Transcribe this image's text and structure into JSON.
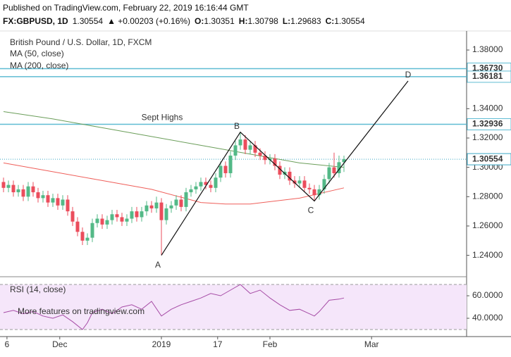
{
  "header": {
    "published": "Published on TradingView.com, February 22, 2019 16:16:44 GMT",
    "symbol": "FX:GBPUSD, 1D",
    "price": "1.30554",
    "change": "▲ +0.00203 (+0.16%)",
    "ohlc": [
      {
        "label": "O:",
        "value": "1.30351"
      },
      {
        "label": "H:",
        "value": "1.30798"
      },
      {
        "label": "L:",
        "value": "1.29683"
      },
      {
        "label": "C:",
        "value": "1.30554"
      }
    ]
  },
  "chart_data": {
    "type": "candlestick",
    "title": "British Pound / U.S. Dollar, 1D, FXCM",
    "up_color": "#53b987",
    "down_color": "#eb4d5c",
    "open": [
      1.29,
      1.286,
      1.288,
      1.283,
      1.285,
      1.28,
      1.287,
      1.283,
      1.279,
      1.281,
      1.276,
      1.279,
      1.274,
      1.278,
      1.27,
      1.263,
      1.256,
      1.25,
      1.252,
      1.262,
      1.265,
      1.261,
      1.264,
      1.268,
      1.266,
      1.263,
      1.265,
      1.27,
      1.266,
      1.27,
      1.274,
      1.272,
      1.276,
      1.264,
      1.272,
      1.274,
      1.278,
      1.273,
      1.283,
      1.285,
      1.287,
      1.29,
      1.288,
      1.286,
      1.293,
      1.301,
      1.296,
      1.308,
      1.315,
      1.319,
      1.312,
      1.315,
      1.31,
      1.308,
      1.305,
      1.306,
      1.301,
      1.295,
      1.297,
      1.291,
      1.289,
      1.291,
      1.286,
      1.285,
      1.281,
      1.285,
      1.292,
      1.3,
      1.296,
      1.30351
    ],
    "high": [
      1.293,
      1.291,
      1.291,
      1.288,
      1.288,
      1.29,
      1.29,
      1.286,
      1.284,
      1.284,
      1.282,
      1.282,
      1.281,
      1.281,
      1.273,
      1.266,
      1.259,
      1.255,
      1.265,
      1.268,
      1.268,
      1.267,
      1.271,
      1.271,
      1.269,
      1.268,
      1.273,
      1.273,
      1.273,
      1.277,
      1.277,
      1.28,
      1.279,
      1.275,
      1.277,
      1.281,
      1.281,
      1.286,
      1.288,
      1.29,
      1.293,
      1.293,
      1.291,
      1.296,
      1.304,
      1.304,
      1.311,
      1.318,
      1.324,
      1.322,
      1.318,
      1.318,
      1.313,
      1.311,
      1.309,
      1.309,
      1.304,
      1.3,
      1.3,
      1.294,
      1.294,
      1.294,
      1.289,
      1.288,
      1.288,
      1.295,
      1.303,
      1.31,
      1.308,
      1.30798
    ],
    "low": [
      1.283,
      1.283,
      1.28,
      1.28,
      1.277,
      1.277,
      1.28,
      1.276,
      1.276,
      1.273,
      1.273,
      1.271,
      1.271,
      1.267,
      1.26,
      1.253,
      1.247,
      1.247,
      1.249,
      1.259,
      1.258,
      1.258,
      1.261,
      1.263,
      1.26,
      1.26,
      1.262,
      1.263,
      1.263,
      1.267,
      1.269,
      1.269,
      1.24,
      1.261,
      1.269,
      1.271,
      1.27,
      1.27,
      1.28,
      1.282,
      1.284,
      1.285,
      1.283,
      1.283,
      1.29,
      1.293,
      1.293,
      1.305,
      1.312,
      1.309,
      1.309,
      1.307,
      1.305,
      1.302,
      1.302,
      1.298,
      1.292,
      1.292,
      1.288,
      1.286,
      1.286,
      1.283,
      1.282,
      1.277,
      1.278,
      1.282,
      1.289,
      1.293,
      1.293,
      1.29683
    ],
    "close": [
      1.286,
      1.288,
      1.283,
      1.285,
      1.28,
      1.287,
      1.283,
      1.279,
      1.281,
      1.276,
      1.279,
      1.274,
      1.278,
      1.27,
      1.263,
      1.256,
      1.25,
      1.252,
      1.262,
      1.265,
      1.261,
      1.264,
      1.268,
      1.266,
      1.263,
      1.265,
      1.27,
      1.266,
      1.27,
      1.274,
      1.272,
      1.276,
      1.264,
      1.272,
      1.274,
      1.278,
      1.273,
      1.283,
      1.285,
      1.287,
      1.29,
      1.288,
      1.286,
      1.293,
      1.301,
      1.296,
      1.308,
      1.315,
      1.319,
      1.312,
      1.315,
      1.31,
      1.308,
      1.305,
      1.306,
      1.301,
      1.295,
      1.297,
      1.291,
      1.289,
      1.291,
      1.286,
      1.285,
      1.281,
      1.285,
      1.292,
      1.3,
      1.296,
      1.3035,
      1.30554
    ],
    "xlim": [
      -0.714,
      93.86
    ],
    "xticks": [
      {
        "value": 0.7,
        "label": "6"
      },
      {
        "value": 11.4,
        "label": "Dec"
      },
      {
        "value": 32,
        "label": "2019"
      },
      {
        "value": 43.4,
        "label": "17"
      },
      {
        "value": 54,
        "label": "Feb"
      },
      {
        "value": 74.6,
        "label": "Mar"
      }
    ],
    "ylim": [
      1.2254,
      1.3901
    ],
    "yticks": [
      {
        "value": 1.24,
        "label": "1.24000"
      },
      {
        "value": 1.26,
        "label": "1.26000"
      },
      {
        "value": 1.28,
        "label": "1.28000"
      },
      {
        "value": 1.3,
        "label": "1.30000"
      },
      {
        "value": 1.32,
        "label": "1.32000"
      },
      {
        "value": 1.34,
        "label": "1.34000"
      },
      {
        "value": 1.36,
        "label": "1.36000"
      },
      {
        "value": 1.38,
        "label": "1.38000"
      }
    ],
    "overlays": [
      {
        "name": "MA (50, close)",
        "color": "#6b9e5a",
        "x": [
          0,
          10,
          20,
          30,
          40,
          50,
          60,
          69
        ],
        "values": [
          1.338,
          1.333,
          1.327,
          1.321,
          1.315,
          1.309,
          1.303,
          1.3
        ]
      },
      {
        "name": "MA (200, close)",
        "color": "#ef5f5a",
        "x": [
          0,
          10,
          20,
          30,
          40,
          45,
          50,
          60,
          69
        ],
        "values": [
          1.303,
          1.297,
          1.291,
          1.285,
          1.276,
          1.275,
          1.275,
          1.279,
          1.286
        ]
      }
    ],
    "levels": [
      {
        "value": 1.3673,
        "label": "1.36730",
        "color": "#5fbcd3"
      },
      {
        "value": 1.36181,
        "label": "1.36181",
        "color": "#5fbcd3"
      },
      {
        "value": 1.32936,
        "label": "1.32936",
        "color": "#5fbcd3",
        "note": "Sept Highs"
      },
      {
        "value": 1.30554,
        "label": "1.30554",
        "color": "#3aa6c4",
        "style": "dotted"
      }
    ],
    "pattern": [
      {
        "label": "A",
        "x": 32,
        "y": 1.24
      },
      {
        "label": "B",
        "x": 48,
        "y": 1.324
      },
      {
        "label": "C",
        "x": 63,
        "y": 1.277
      },
      {
        "label": "D",
        "x": 82,
        "y": 1.3589
      }
    ],
    "rsi": {
      "name": "RSI (14, close)",
      "color": "#a64ca6",
      "ylim": [
        25,
        74.4
      ],
      "yticks": [
        {
          "value": 40,
          "label": "40.0000"
        },
        {
          "value": 60,
          "label": "60.0000"
        }
      ],
      "bands": [
        30,
        70
      ],
      "x": [
        0,
        2,
        4,
        6,
        8,
        10,
        12,
        14,
        16,
        17,
        18,
        20,
        22,
        24,
        26,
        28,
        30,
        32,
        34,
        36,
        38,
        40,
        42,
        44,
        46,
        48,
        50,
        52,
        54,
        56,
        58,
        60,
        62,
        63,
        64,
        66,
        68,
        69
      ],
      "values": [
        45,
        47,
        44,
        46,
        42,
        40,
        43,
        37,
        30,
        36,
        45,
        48,
        44,
        50,
        52,
        48,
        55,
        42,
        48,
        52,
        55,
        58,
        62,
        60,
        65,
        70,
        62,
        65,
        58,
        52,
        47,
        48,
        44,
        42,
        46,
        56,
        57,
        58
      ]
    },
    "watermark": "More features on tradingview.com"
  }
}
